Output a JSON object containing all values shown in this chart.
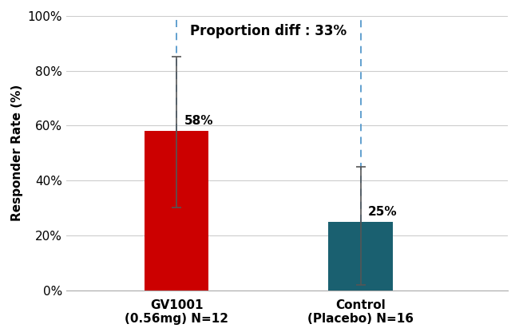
{
  "categories": [
    "GV1001\n(0.56mg) N=12",
    "Control\n(Placebo) N=16"
  ],
  "values": [
    58,
    25
  ],
  "errors_upper": [
    27,
    20
  ],
  "errors_lower": [
    28,
    23
  ],
  "bar_colors": [
    "#cc0000",
    "#1a6070"
  ],
  "bar_width": 0.35,
  "bar_positions": [
    1,
    2
  ],
  "ylabel": "Responder Rate (%)",
  "ylim": [
    0,
    100
  ],
  "yticks": [
    0,
    20,
    40,
    60,
    80,
    100
  ],
  "yticklabels": [
    "0%",
    "20%",
    "40%",
    "60%",
    "80%",
    "100%"
  ],
  "value_labels": [
    "58%",
    "25%"
  ],
  "proportion_text": "Proportion diff : 33%",
  "dashed_line_color": "#5599cc",
  "error_bar_color": "#555555",
  "background_color": "#ffffff",
  "grid_color": "#cccccc",
  "xlim": [
    0.4,
    2.8
  ]
}
